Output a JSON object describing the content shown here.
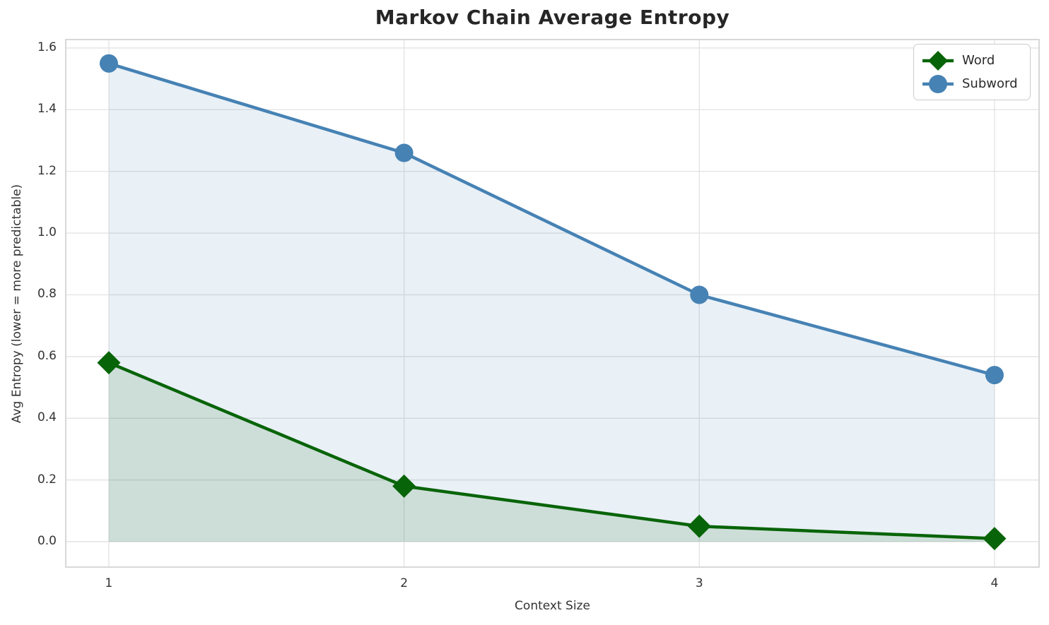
{
  "figure_title": "Markov Chain Average Entropy",
  "chart_data": {
    "type": "line",
    "title": "Markov Chain Average Entropy",
    "xlabel": "Context Size",
    "ylabel": "Avg Entropy (lower = more predictable)",
    "x": [
      1,
      2,
      3,
      4
    ],
    "xtick_labels": [
      "1",
      "2",
      "3",
      "4"
    ],
    "yticks": [
      0.0,
      0.2,
      0.4,
      0.6,
      0.8,
      1.0,
      1.2,
      1.4,
      1.6
    ],
    "ytick_labels": [
      "0.0",
      "0.2",
      "0.4",
      "0.6",
      "0.8",
      "1.0",
      "1.2",
      "1.4",
      "1.6"
    ],
    "ylim": [
      0.0,
      1.6
    ],
    "grid": true,
    "legend_position": "upper right",
    "fill_baseline": 0.0,
    "series": [
      {
        "name": "Word",
        "values": [
          0.58,
          0.18,
          0.05,
          0.01
        ],
        "color": "#086408",
        "marker": "diamond",
        "fill_alpha": 0.12
      },
      {
        "name": "Subword",
        "values": [
          1.55,
          1.26,
          0.8,
          0.54
        ],
        "color": "#4682b4",
        "marker": "circle",
        "fill_alpha": 0.12
      }
    ],
    "style": {
      "grid_color": "#e4e4e4",
      "frame_color": "#d4d4d4",
      "background": "#ffffff",
      "line_width": 4.5
    }
  }
}
